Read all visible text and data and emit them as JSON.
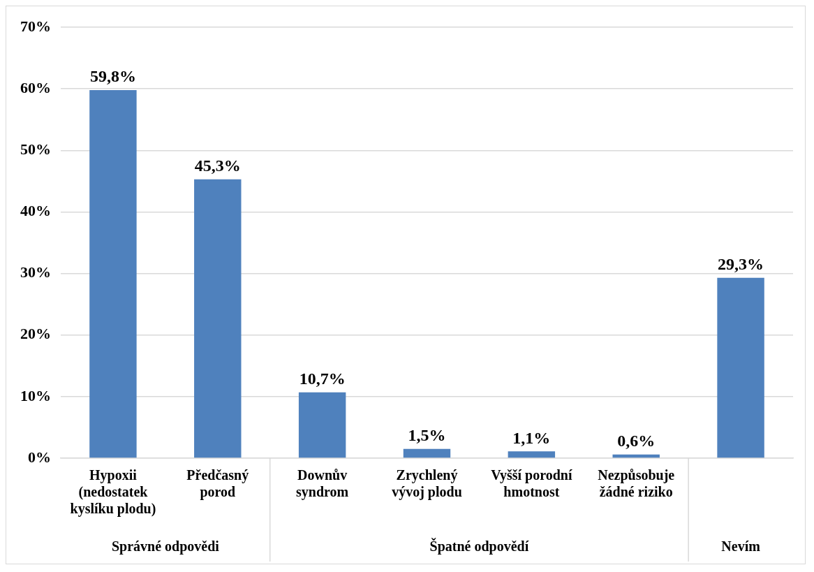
{
  "chart_data": {
    "type": "bar",
    "categories": [
      "Hypoxii (nedostatek kyslíku plodu)",
      "Předčasný porod",
      "Downův syndrom",
      "Zrychlený vývoj plodu",
      "Vyšší porodní hmotnost",
      "Nezpůsobuje žádné riziko",
      null
    ],
    "values": [
      59.8,
      45.3,
      10.7,
      1.5,
      1.1,
      0.6,
      29.3
    ],
    "value_labels": [
      "59,8%",
      "45,3%",
      "10,7%",
      "1,5%",
      "1,1%",
      "0,6%",
      "29,3%"
    ],
    "color": "#4f81bd",
    "ylim": [
      0,
      70
    ],
    "yticks": [
      {
        "value": 0,
        "label": "0%"
      },
      {
        "value": 10,
        "label": "10%"
      },
      {
        "value": 20,
        "label": "20%"
      },
      {
        "value": 30,
        "label": "30%"
      },
      {
        "value": 40,
        "label": "40%"
      },
      {
        "value": 50,
        "label": "50%"
      },
      {
        "value": 60,
        "label": "60%"
      },
      {
        "value": 70,
        "label": "70%"
      }
    ],
    "grid": "y",
    "legend": false,
    "annotations": [
      "Správné odpovědi",
      "Špatné odpovědí",
      "Nevím"
    ]
  }
}
